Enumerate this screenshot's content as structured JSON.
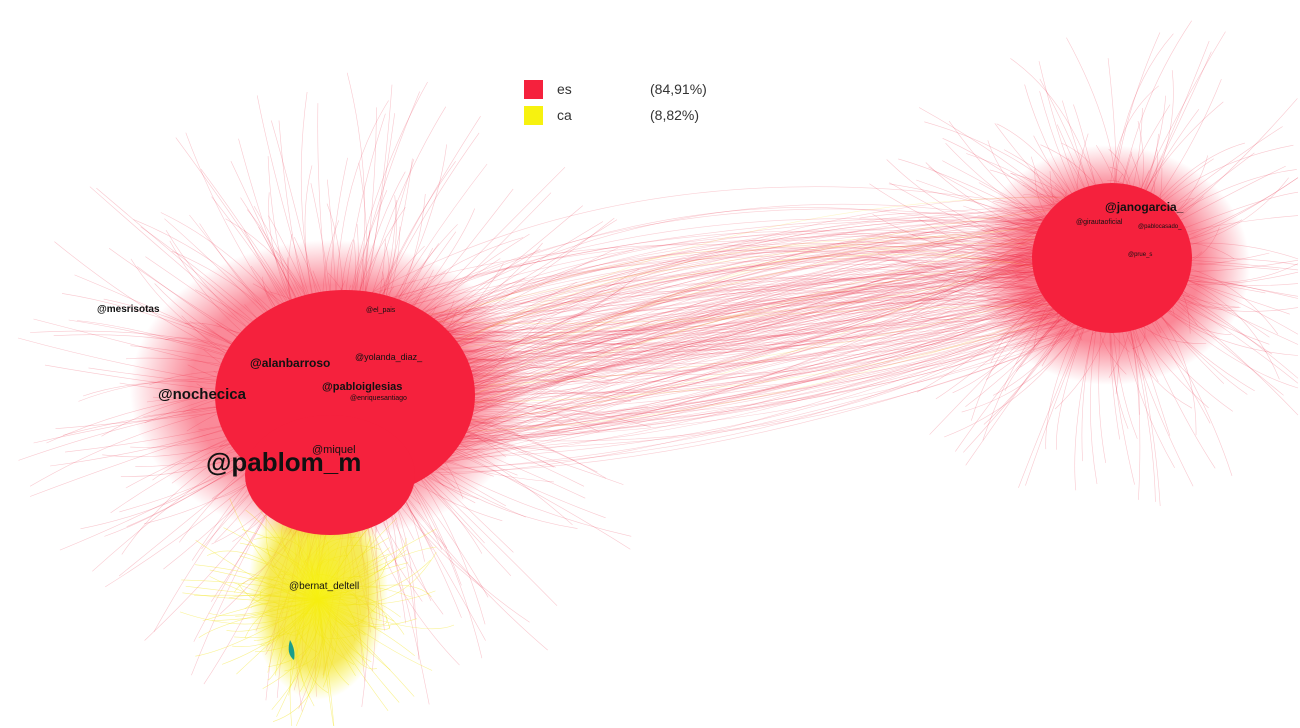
{
  "legend": {
    "items": [
      {
        "label": "es",
        "percent": "(84,91%)",
        "color": "#f5213d"
      },
      {
        "label": "ca",
        "percent": "(8,82%)",
        "color": "#f7f20f"
      }
    ]
  },
  "nodes": {
    "left": [
      {
        "id": "mesrisotas",
        "label": "@mesrisotas",
        "size": "small"
      },
      {
        "id": "nochecica",
        "label": "@nochecica",
        "size": "medium"
      },
      {
        "id": "alanbarroso",
        "label": "@alanbarroso",
        "size": "small-medium"
      },
      {
        "id": "yolanda_diaz",
        "label": "@yolanda_diaz_",
        "size": "small"
      },
      {
        "id": "pabloiglesias",
        "label": "@pabloiglesias",
        "size": "small-medium"
      },
      {
        "id": "enriquesantiago",
        "label": "@enriquesantiago",
        "size": "tiny"
      },
      {
        "id": "el_pais",
        "label": "@el_pais",
        "size": "tiny"
      },
      {
        "id": "miquel",
        "label": "@miquel",
        "size": "small"
      },
      {
        "id": "pablom_m",
        "label": "@pablom_m",
        "size": "large"
      },
      {
        "id": "bernat_deltell",
        "label": "@bernat_deltell",
        "size": "small"
      }
    ],
    "right": [
      {
        "id": "janogarcia",
        "label": "@janogarcia_",
        "size": "small-medium"
      },
      {
        "id": "girautaoficial",
        "label": "@girautaoficial",
        "size": "tiny"
      },
      {
        "id": "pablocasado",
        "label": "@pablocasado_",
        "size": "tiny"
      },
      {
        "id": "prue",
        "label": "@prue_s",
        "size": "tiny"
      }
    ]
  }
}
